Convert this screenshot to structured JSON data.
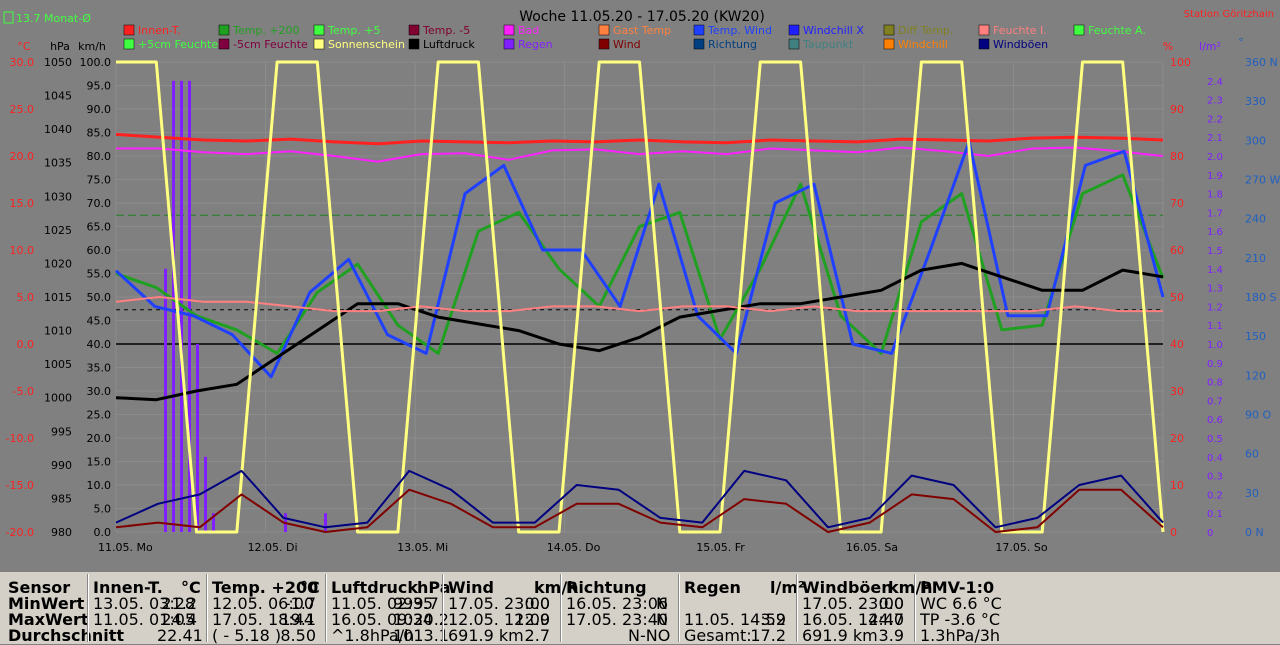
{
  "header": {
    "title": "Woche 11.05.20 - 17.05.20 (KW20)",
    "station": "Station Göritzhain",
    "badge": "13.7 Monat-Ø"
  },
  "legend": [
    {
      "label": "Innen-T.",
      "color": "#ff2020"
    },
    {
      "label": "Temp. +200",
      "color": "#20a020"
    },
    {
      "label": "Temp. +5",
      "color": "#40ff40"
    },
    {
      "label": "Temp. -5",
      "color": "#800030"
    },
    {
      "label": "Bad",
      "color": "#ff20ff"
    },
    {
      "label": "Gast Temp",
      "color": "#ff8040"
    },
    {
      "label": "Temp. Wind",
      "color": "#2040ff"
    },
    {
      "label": "Windchill X",
      "color": "#2020ff"
    },
    {
      "label": "Diff Temp.",
      "color": "#808020"
    },
    {
      "label": "Feuchte I.",
      "color": "#ff8080"
    },
    {
      "label": "Feuchte A.",
      "color": "#40ff40"
    },
    {
      "label": "+5cm Feuchte",
      "color": "#40ff40"
    },
    {
      "label": "-5cm Feuchte",
      "color": "#800040"
    },
    {
      "label": "Sonnenschein",
      "color": "#ffff80"
    },
    {
      "label": "Luftdruck",
      "color": "#000000"
    },
    {
      "label": "Regen",
      "color": "#8020ff"
    },
    {
      "label": "Wind",
      "color": "#800000"
    },
    {
      "label": "Richtung",
      "color": "#004080"
    },
    {
      "label": "Taupunkt",
      "color": "#408080"
    },
    {
      "label": "Windchill",
      "color": "#ff8000"
    },
    {
      "label": "Windböen",
      "color": "#000080"
    }
  ],
  "chart_data": {
    "type": "line",
    "title": "Woche 11.05.20 - 17.05.20 (KW20)",
    "axes": {
      "temp_c": {
        "label": "°C",
        "ticks": [
          "30.0",
          "25.0",
          "20.0",
          "15.0",
          "10.0",
          "5.0",
          "0.0",
          "-5.0",
          "-10.0",
          "-15.0",
          "-20.0"
        ]
      },
      "pressure_hpa": {
        "label": "hPa",
        "ticks": [
          "1050",
          "1045",
          "1040",
          "1035",
          "1030",
          "1025",
          "1020",
          "1015",
          "1010",
          "1005",
          "1000",
          "995",
          "990",
          "985",
          "980"
        ]
      },
      "wind_kmh": {
        "label": "km/h",
        "ticks": [
          "100.0",
          "95.0",
          "90.0",
          "85.0",
          "80.0",
          "75.0",
          "70.0",
          "65.0",
          "60.0",
          "55.0",
          "50.0",
          "45.0",
          "40.0",
          "35.0",
          "30.0",
          "25.0",
          "20.0",
          "15.0",
          "10.0",
          "5.0",
          "0.0"
        ]
      },
      "humidity_pct": {
        "label": "%",
        "ticks": [
          "100",
          "90",
          "80",
          "70",
          "60",
          "50",
          "40",
          "30",
          "20",
          "10",
          "0"
        ]
      },
      "rain_lm2": {
        "label": "l/m²",
        "ticks": [
          "2.4",
          "2.3",
          "2.2",
          "2.1",
          "2.0",
          "1.9",
          "1.8",
          "1.7",
          "1.6",
          "1.5",
          "1.4",
          "1.3",
          "1.2",
          "1.1",
          "1.0",
          "0.9",
          "0.8",
          "0.7",
          "0.6",
          "0.5",
          "0.4",
          "0.3",
          "0.2",
          "0.1",
          "0"
        ]
      },
      "direction": {
        "label": "°",
        "ticks": [
          "360 N",
          "330",
          "300",
          "270 W",
          "240",
          "210",
          "180 S",
          "150",
          "120",
          "90 O",
          "60",
          "30",
          "0 N"
        ]
      }
    },
    "days": [
      "11.05. Mo",
      "12.05. Di",
      "13.05. Mi",
      "14.05. Do",
      "15.05. Fr",
      "16.05. Sa",
      "17.05. So"
    ],
    "ylim_temp": [
      -20,
      30
    ],
    "ylim_wind": [
      0,
      100
    ],
    "ylim_hum": [
      0,
      100
    ],
    "series": [
      {
        "name": "Innen-T.",
        "color": "#ff2020",
        "axis": "temp",
        "values": [
          22.3,
          22.0,
          21.7,
          21.6,
          21.8,
          21.5,
          21.3,
          21.6,
          21.5,
          21.4,
          21.6,
          21.5,
          21.7,
          21.5,
          21.4,
          21.7,
          21.6,
          21.5,
          21.8,
          21.7,
          21.6,
          21.9,
          22.0,
          21.9,
          21.7
        ]
      },
      {
        "name": "Bad",
        "color": "#ff20ff",
        "axis": "temp",
        "values": [
          20.8,
          20.8,
          20.4,
          20.2,
          20.5,
          20.0,
          19.4,
          20.2,
          20.3,
          19.6,
          20.6,
          20.7,
          20.2,
          20.5,
          20.2,
          20.8,
          20.6,
          20.4,
          20.9,
          20.5,
          20.0,
          20.8,
          20.9,
          20.5,
          20.0
        ]
      },
      {
        "name": "Temp. +200",
        "color": "#20a020",
        "axis": "temp",
        "values": [
          7.5,
          6.0,
          3.0,
          1.5,
          -1.0,
          5.5,
          8.5,
          2.0,
          -1.0,
          12.0,
          14.0,
          8.0,
          4.0,
          12.5,
          14.0,
          0.5,
          8.0,
          17.0,
          3.0,
          -1.0,
          13.0,
          16.0,
          1.5,
          2.0,
          16.0,
          18.0,
          7.0
        ]
      },
      {
        "name": "Temp. Wind",
        "color": "#2040ff",
        "axis": "temp",
        "values": [
          7.8,
          4.0,
          3.0,
          1.0,
          -3.5,
          5.5,
          9.0,
          1.0,
          -1.0,
          16.0,
          19.0,
          10.0,
          10.0,
          4.0,
          17.0,
          3.0,
          -1.0,
          15.0,
          17.0,
          0.0,
          -1.0,
          10.0,
          21.5,
          3.0,
          3.0,
          19.0,
          20.5,
          5.0
        ]
      },
      {
        "name": "Luftdruck",
        "color": "#000000",
        "axis": "pressure",
        "values": [
          1000,
          999.7,
          1001,
          1002,
          1006,
          1010,
          1014,
          1014,
          1012,
          1011,
          1010,
          1008,
          1007,
          1009,
          1012,
          1013,
          1014,
          1014,
          1015,
          1016,
          1019,
          1020,
          1018,
          1016,
          1016,
          1019,
          1018
        ]
      },
      {
        "name": "Feuchte I.",
        "color": "#ff8080",
        "axis": "hum",
        "values": [
          49,
          50,
          49,
          49,
          48,
          47,
          47,
          48,
          47,
          47,
          48,
          48,
          47,
          48,
          48,
          47,
          48,
          47,
          47,
          47,
          47,
          47,
          48,
          47,
          47
        ]
      },
      {
        "name": "Sonnenschein",
        "color": "#ffff80",
        "axis": "hum",
        "values": [
          100,
          100,
          0,
          0,
          100,
          100,
          0,
          0,
          100,
          100,
          0,
          0,
          100,
          100,
          0,
          0,
          100,
          100,
          0,
          0,
          100,
          100,
          0,
          0,
          100,
          100,
          0
        ]
      },
      {
        "name": "Wind",
        "color": "#800000",
        "axis": "wind",
        "values": [
          1,
          2,
          1,
          8,
          2,
          0,
          1,
          9,
          6,
          1,
          1,
          6,
          6,
          2,
          1,
          7,
          6,
          0,
          2,
          8,
          7,
          0,
          1,
          9,
          9,
          1
        ]
      },
      {
        "name": "Windböen",
        "color": "#000080",
        "axis": "wind",
        "values": [
          2,
          6,
          8,
          13,
          3,
          1,
          2,
          13,
          9,
          2,
          2,
          10,
          9,
          3,
          2,
          13,
          11,
          1,
          3,
          12,
          10,
          1,
          3,
          10,
          12,
          2
        ]
      }
    ],
    "rain": {
      "color": "#8020ff",
      "values": [
        0.0,
        1.4,
        2.4,
        2.4,
        2.4,
        1.0,
        0.4,
        0.1,
        0.0,
        0.0,
        0.0,
        0.0,
        0.0,
        0.0,
        0.0,
        0.0,
        0.1,
        0.0,
        0.0,
        0.0,
        0.0,
        0.1,
        0.0,
        0.0,
        0.0,
        0.0
      ]
    }
  },
  "stats": [
    {
      "head": [
        "Sensor",
        ""
      ],
      "rows": [
        [
          "MinWert",
          ""
        ],
        [
          "MaxWert",
          ""
        ],
        [
          "Durchschnitt",
          ""
        ]
      ]
    },
    {
      "head": [
        "Innen-T.",
        "°C"
      ],
      "rows": [
        [
          "13.05.  03:28",
          "21.2"
        ],
        [
          "11.05.  01:05",
          "24.4"
        ],
        [
          "",
          "22.41"
        ]
      ]
    },
    {
      "head": [
        "Temp. +200",
        "°C"
      ],
      "rows": [
        [
          "12.05.  06:00",
          "-1.7"
        ],
        [
          "17.05.  18:44",
          "19.1"
        ],
        [
          "( - 5.18 )",
          "8.50"
        ]
      ]
    },
    {
      "head": [
        "Luftdruck",
        "hPa"
      ],
      "rows": [
        [
          "11.05.  02:35",
          "999.7"
        ],
        [
          "16.05.  09:34",
          "1020.2"
        ],
        [
          "^1.8hPa/h",
          "1013.1"
        ]
      ]
    },
    {
      "head": [
        "Wind",
        "km/h"
      ],
      "rows": [
        [
          "17.05.  23:00",
          "0.0"
        ],
        [
          "12.05.  12:00",
          "12.9"
        ],
        [
          "691.9 km",
          "2.7"
        ]
      ]
    },
    {
      "head": [
        "Richtung",
        ""
      ],
      "rows": [
        [
          "16.05.  23:06",
          "N"
        ],
        [
          "17.05.  23:40",
          "N"
        ],
        [
          "",
          "N-NO"
        ]
      ]
    },
    {
      "head": [
        "Regen",
        "l/m²"
      ],
      "rows": [
        [
          "",
          ""
        ],
        [
          "11.05.  14:59",
          "3.2"
        ],
        [
          "Gesamt:",
          "17.2"
        ]
      ]
    },
    {
      "head": [
        "Windböen",
        "km/h"
      ],
      "rows": [
        [
          "17.05.  23:00",
          "0.0"
        ],
        [
          "16.05.  14:40",
          "24.7"
        ],
        [
          "691.9 km",
          "3.9"
        ]
      ]
    },
    {
      "head": [
        "PMV-1:0",
        ""
      ],
      "rows": [
        [
          "WC 6.6 °C",
          ""
        ],
        [
          "TP -3.6 °C",
          ""
        ],
        [
          "1.3hPa/3h",
          ""
        ]
      ]
    }
  ]
}
